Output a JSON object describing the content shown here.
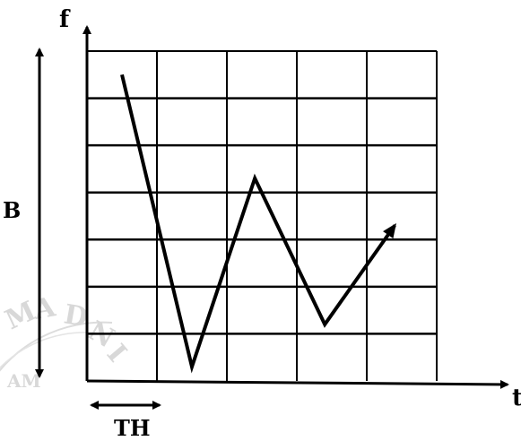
{
  "diagram": {
    "y_axis_label": "f",
    "x_axis_label": "t",
    "bandwidth_label": "B",
    "hop_time_label": "TH",
    "grid": {
      "columns": 5,
      "rows": 7
    },
    "hop_path": [
      [
        0.5,
        6.5
      ],
      [
        1.5,
        0.3
      ],
      [
        2.4,
        4.3
      ],
      [
        3.4,
        1.2
      ],
      [
        4.4,
        3.3
      ]
    ]
  },
  "watermark": {
    "letters": [
      "M",
      "A",
      "D",
      "N",
      "I"
    ],
    "inner_text": "AM"
  },
  "colors": {
    "line": "#000000",
    "watermark": "#d8d8d8",
    "background": "#ffffff"
  }
}
